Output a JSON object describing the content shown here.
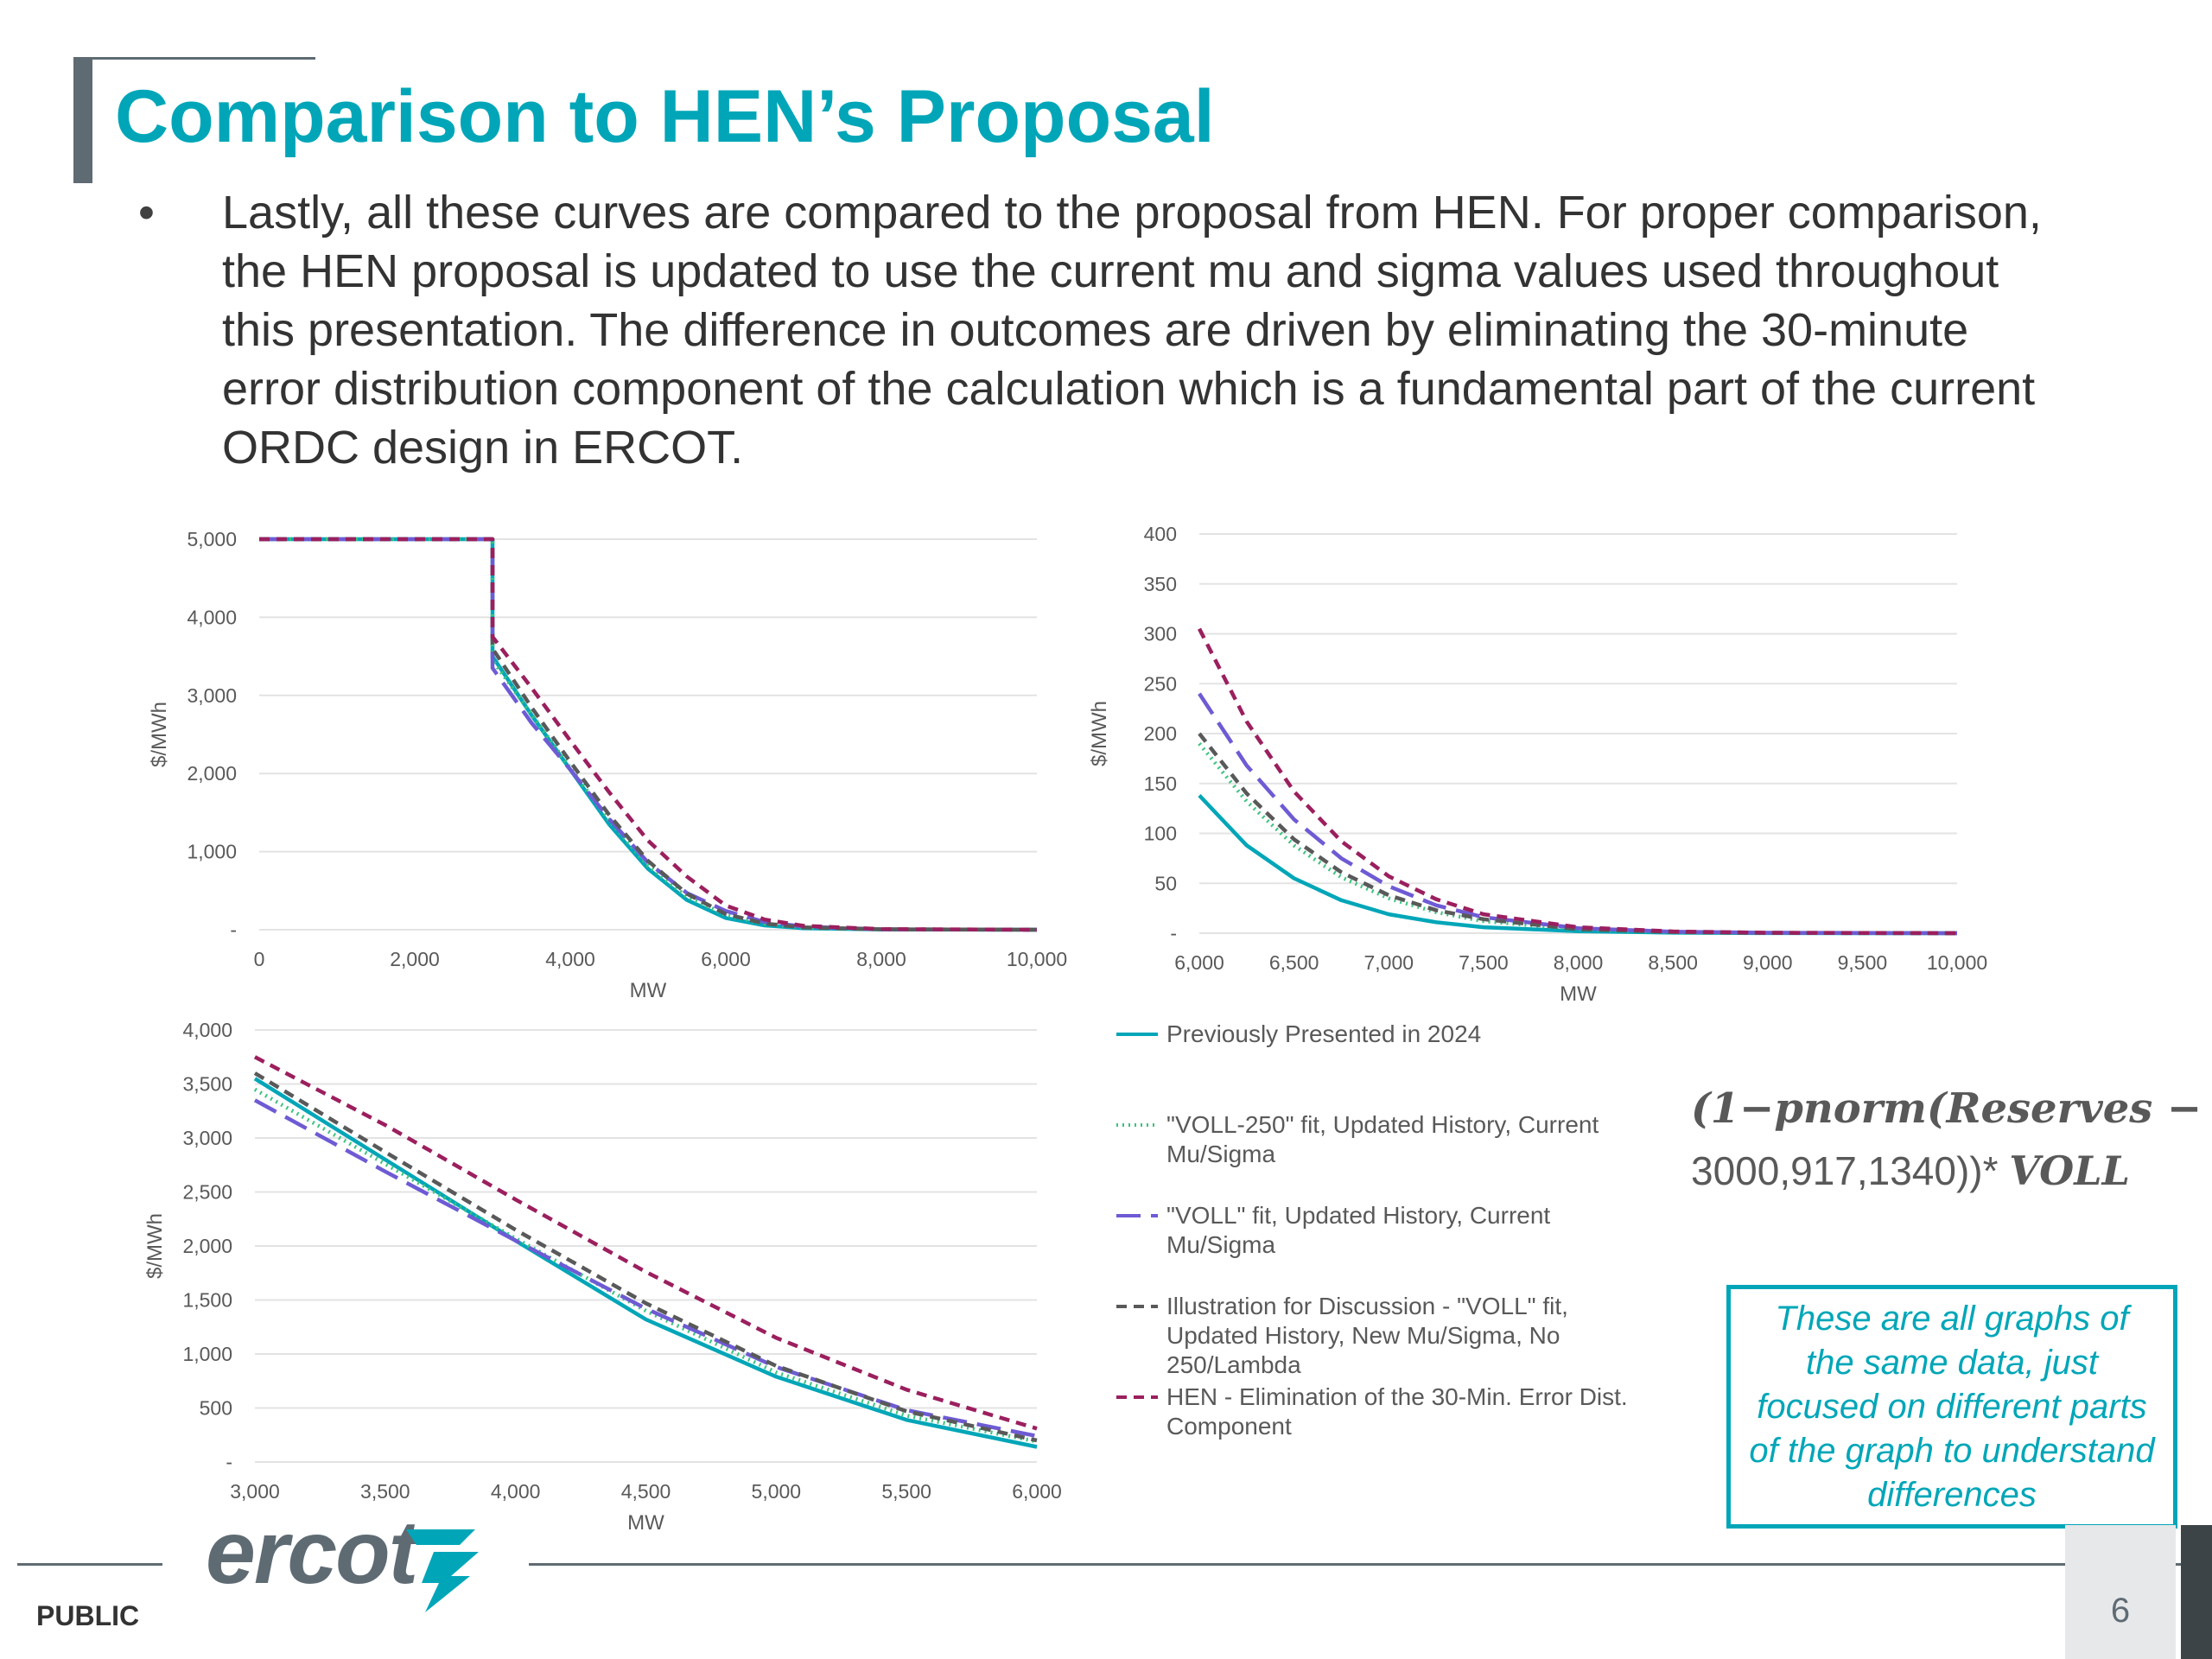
{
  "title": "Comparison to HEN’s Proposal",
  "bullet": "Lastly, all these curves are compared to the proposal from HEN.  For proper comparison, the HEN proposal is updated to use the current mu and sigma values used throughout this presentation.  The difference in outcomes are driven by eliminating the 30-minute error distribution component of the calculation which is a fundamental part of the current ORDC design in ERCOT.",
  "legend": [
    {
      "label": "Previously Presented in 2024",
      "color": "#00a6b8",
      "dash": "solid"
    },
    {
      "label": "\"VOLL-250\" fit, Updated History, Current Mu/Sigma",
      "color": "#3cc37f",
      "dash": "dotted"
    },
    {
      "label": "\"VOLL\" fit, Updated History, Current Mu/Sigma",
      "color": "#6e5bd4",
      "dash": "longdash"
    },
    {
      "label": "Illustration for Discussion - \"VOLL\" fit, Updated History, New Mu/Sigma, No 250/Lambda",
      "color": "#595959",
      "dash": "dash"
    },
    {
      "label": "HEN - Elimination of the 30-Min. Error Dist. Component",
      "color": "#9b1f5e",
      "dash": "dash"
    }
  ],
  "formula_line1": "(1−pnorm(Reserves −",
  "formula_line2_num": "3000,917,1340))*",
  "formula_line2_voll": "VOLL",
  "note": "These are all graphs of the same data, just focused on different parts of the graph to understand differences",
  "footer": {
    "public": "PUBLIC",
    "page": "6",
    "logo": "ercot"
  },
  "chart_data": [
    {
      "type": "line",
      "xlabel": "MW",
      "ylabel": "$/MWh",
      "xlim": [
        0,
        10000
      ],
      "ylim": [
        0,
        5000
      ],
      "xticks": [
        0,
        2000,
        4000,
        6000,
        8000,
        10000
      ],
      "xtick_labels": [
        "0",
        "2,000",
        "4,000",
        "6,000",
        "8,000",
        "10,000"
      ],
      "yticks": [
        0,
        1000,
        2000,
        3000,
        4000,
        5000
      ],
      "ytick_labels": [
        "-",
        "1,000",
        "2,000",
        "3,000",
        "4,000",
        "5,000"
      ],
      "grid": true,
      "series": [
        {
          "x": [
            0,
            3000,
            3000,
            3500,
            4000,
            4500,
            5000,
            5500,
            6000,
            6500,
            7000,
            8000,
            10000
          ],
          "y": [
            5000,
            5000,
            3500,
            2750,
            2050,
            1350,
            780,
            380,
            150,
            55,
            20,
            3,
            0
          ]
        },
        {
          "x": [
            0,
            3000,
            3000,
            3500,
            4000,
            4500,
            5000,
            5500,
            6000,
            6500,
            7000,
            8000,
            10000
          ],
          "y": [
            5000,
            5000,
            3450,
            2760,
            2070,
            1400,
            820,
            420,
            190,
            75,
            30,
            5,
            0
          ]
        },
        {
          "x": [
            0,
            3000,
            3000,
            3500,
            4000,
            4500,
            5000,
            5500,
            6000,
            6500,
            7000,
            8000,
            10000
          ],
          "y": [
            5000,
            5000,
            3350,
            2650,
            2050,
            1420,
            860,
            470,
            240,
            100,
            40,
            6,
            0
          ]
        },
        {
          "x": [
            0,
            3000,
            3000,
            3500,
            4000,
            4500,
            5000,
            5500,
            6000,
            6500,
            7000,
            8000,
            10000
          ],
          "y": [
            5000,
            5000,
            3600,
            2850,
            2150,
            1470,
            880,
            460,
            200,
            80,
            30,
            5,
            0
          ]
        },
        {
          "x": [
            0,
            3000,
            3000,
            3500,
            4000,
            4500,
            5000,
            5500,
            6000,
            6500,
            7000,
            8000,
            10000
          ],
          "y": [
            5000,
            5000,
            3750,
            3100,
            2420,
            1760,
            1140,
            680,
            310,
            130,
            50,
            8,
            0
          ]
        }
      ]
    },
    {
      "type": "line",
      "xlabel": "MW",
      "ylabel": "$/MWh",
      "xlim": [
        6000,
        10000
      ],
      "ylim": [
        0,
        400
      ],
      "xticks": [
        6000,
        6500,
        7000,
        7500,
        8000,
        8500,
        9000,
        9500,
        10000
      ],
      "xtick_labels": [
        "6,000",
        "6,500",
        "7,000",
        "7,500",
        "8,000",
        "8,500",
        "9,000",
        "9,500",
        "10,000"
      ],
      "yticks": [
        0,
        50,
        100,
        150,
        200,
        250,
        300,
        350,
        400
      ],
      "ytick_labels": [
        "-",
        "50",
        "100",
        "150",
        "200",
        "250",
        "300",
        "350",
        "400"
      ],
      "grid": true,
      "series": [
        {
          "x": [
            6000,
            6250,
            6500,
            6750,
            7000,
            7250,
            7500,
            8000,
            8500,
            9000,
            10000
          ],
          "y": [
            138,
            88,
            55,
            33,
            19,
            11,
            6,
            2,
            0.5,
            0.1,
            0
          ]
        },
        {
          "x": [
            6000,
            6250,
            6500,
            6750,
            7000,
            7250,
            7500,
            8000,
            8500,
            9000,
            10000
          ],
          "y": [
            190,
            132,
            88,
            56,
            35,
            21,
            12,
            4,
            1,
            0.3,
            0
          ]
        },
        {
          "x": [
            6000,
            6250,
            6500,
            6750,
            7000,
            7250,
            7500,
            8000,
            8500,
            9000,
            10000
          ],
          "y": [
            240,
            168,
            114,
            75,
            47,
            28,
            16,
            5,
            1.5,
            0.4,
            0
          ]
        },
        {
          "x": [
            6000,
            6250,
            6500,
            6750,
            7000,
            7250,
            7500,
            8000,
            8500,
            9000,
            10000
          ],
          "y": [
            200,
            140,
            94,
            61,
            38,
            23,
            14,
            4,
            1.2,
            0.3,
            0
          ]
        },
        {
          "x": [
            6000,
            6250,
            6500,
            6750,
            7000,
            7250,
            7500,
            8000,
            8500,
            9000,
            10000
          ],
          "y": [
            305,
            212,
            142,
            92,
            57,
            34,
            19,
            6,
            1.7,
            0.4,
            0
          ]
        }
      ]
    },
    {
      "type": "line",
      "xlabel": "MW",
      "ylabel": "$/MWh",
      "xlim": [
        3000,
        6000
      ],
      "ylim": [
        0,
        4000
      ],
      "xticks": [
        3000,
        3500,
        4000,
        4500,
        5000,
        5500,
        6000
      ],
      "xtick_labels": [
        "3,000",
        "3,500",
        "4,000",
        "4,500",
        "5,000",
        "5,500",
        "6,000"
      ],
      "yticks": [
        0,
        500,
        1000,
        1500,
        2000,
        2500,
        3000,
        3500,
        4000
      ],
      "ytick_labels": [
        "-",
        "500",
        "1,000",
        "1,500",
        "2,000",
        "2,500",
        "3,000",
        "3,500",
        "4,000"
      ],
      "grid": true,
      "series": [
        {
          "x": [
            3000,
            3500,
            4000,
            4500,
            5000,
            5500,
            6000
          ],
          "y": [
            3550,
            2800,
            2050,
            1320,
            790,
            390,
            140
          ]
        },
        {
          "x": [
            3000,
            3500,
            4000,
            4500,
            5000,
            5500,
            6000
          ],
          "y": [
            3450,
            2760,
            2070,
            1400,
            830,
            430,
            190
          ]
        },
        {
          "x": [
            3000,
            3500,
            4000,
            4500,
            5000,
            5500,
            6000
          ],
          "y": [
            3350,
            2690,
            2050,
            1420,
            880,
            480,
            240
          ]
        },
        {
          "x": [
            3000,
            3500,
            4000,
            4500,
            5000,
            5500,
            6000
          ],
          "y": [
            3600,
            2870,
            2150,
            1470,
            890,
            470,
            200
          ]
        },
        {
          "x": [
            3000,
            3500,
            4000,
            4500,
            5000,
            5500,
            6000
          ],
          "y": [
            3750,
            3120,
            2430,
            1760,
            1150,
            670,
            310
          ]
        }
      ]
    }
  ]
}
